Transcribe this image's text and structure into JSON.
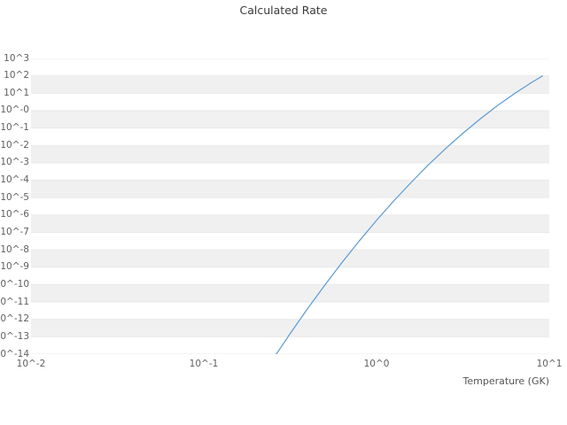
{
  "chart_data": {
    "type": "line",
    "title": "Calculated Rate",
    "xlabel": "Temperature (GK)",
    "ylabel": "",
    "xscale": "log",
    "yscale": "log",
    "xlim_log10": [
      -2,
      1
    ],
    "ylim_log10": [
      -14,
      3
    ],
    "x_tick_log10": [
      -2,
      -1,
      0,
      1
    ],
    "x_tick_labels": [
      "10^-2",
      "10^-1",
      "10^0",
      "10^1"
    ],
    "y_tick_log10": [
      3,
      2,
      1,
      0,
      -1,
      -2,
      -3,
      -4,
      -5,
      -6,
      -7,
      -8,
      -9,
      -10,
      -11,
      -12,
      -13,
      -14
    ],
    "y_tick_labels": [
      "10^3",
      "10^2",
      "10^1",
      "10^-0",
      "10^-1",
      "10^-2",
      "10^-3",
      "10^-4",
      "10^-5",
      "10^-6",
      "10^-7",
      "10^-8",
      "10^-9",
      "10^-10",
      "10^-11",
      "10^-12",
      "10^-13",
      "10^-14"
    ],
    "grid": "horizontal-stripes",
    "legend": "none",
    "series": [
      {
        "name": "calculated-rate",
        "color": "#5b9bd5",
        "x_temperature_GK": [
          0.263,
          0.316,
          0.398,
          0.501,
          0.631,
          0.794,
          1.0,
          1.259,
          1.585,
          1.995,
          2.512,
          3.162,
          3.981,
          5.012,
          6.31,
          7.943,
          9.12
        ],
        "y_rate": [
          1e-14,
          1.5e-13,
          4e-12,
          9.1e-11,
          1.86e-09,
          3.2e-08,
          4.9e-07,
          6.5e-06,
          7.4e-05,
          0.00076,
          0.0066,
          0.05,
          0.33,
          1.95,
          9.8,
          42.7,
          97.7
        ]
      }
    ],
    "style": {
      "background": "#ffffff",
      "stripe_color": "#f0f0f0",
      "gridline_color": "#e9e9e9",
      "tick_label_color": "#606060",
      "title_color": "#3a3a3a"
    }
  }
}
